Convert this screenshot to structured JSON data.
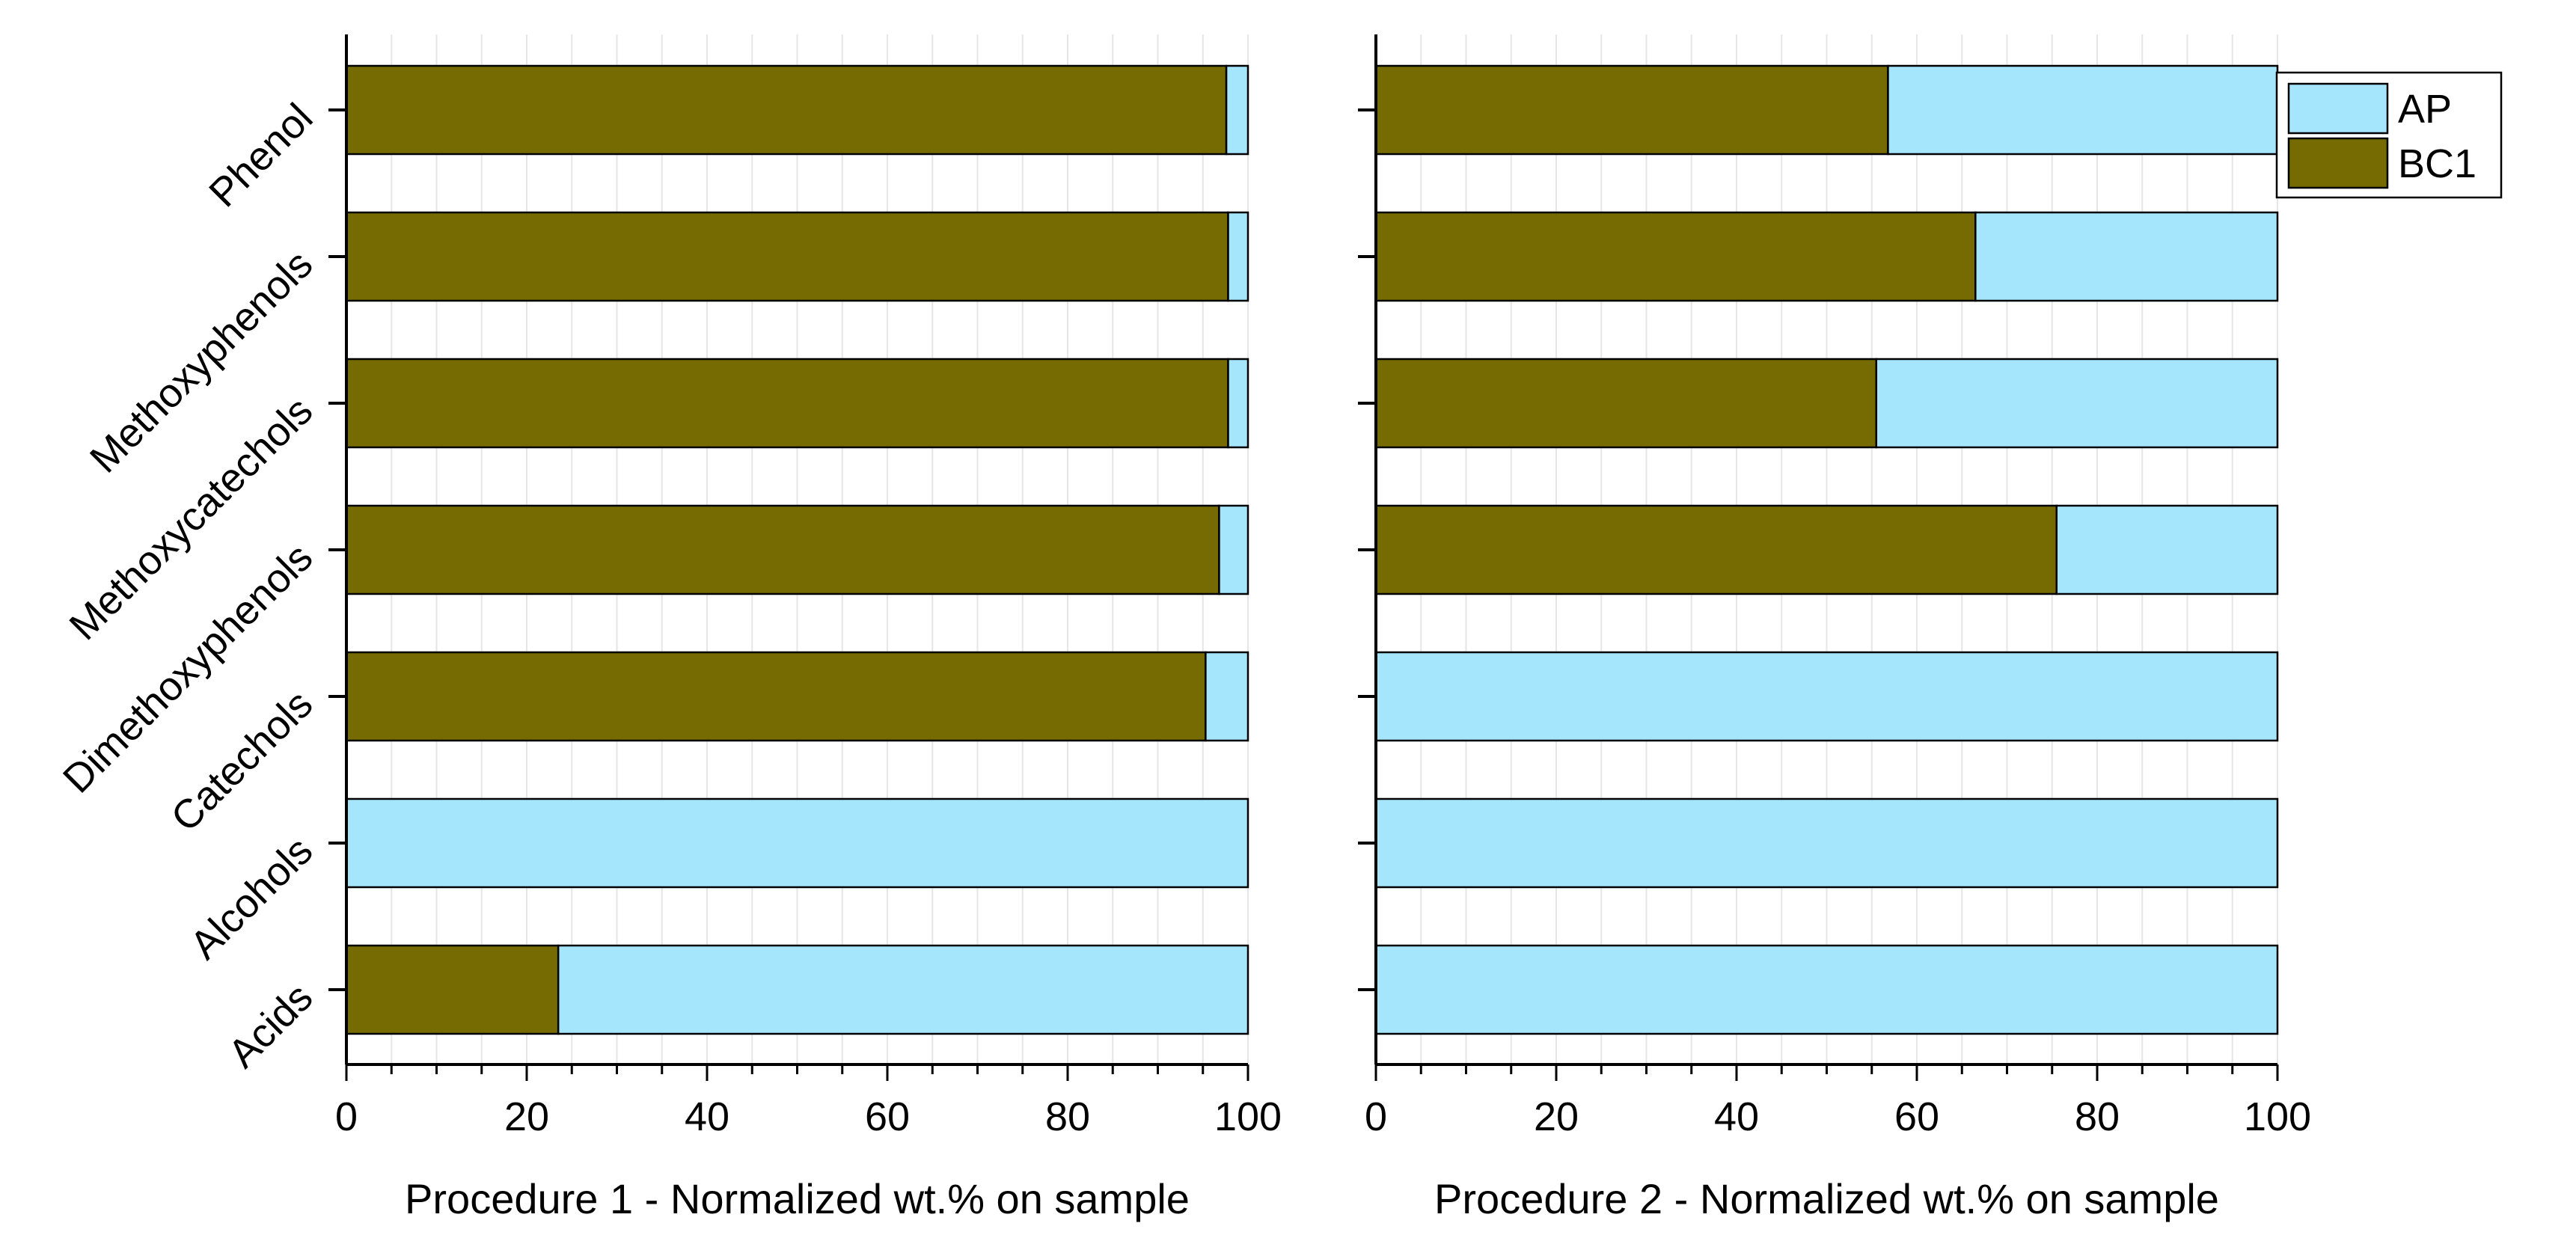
{
  "chart_data": [
    {
      "type": "bar",
      "orientation": "horizontal",
      "stacked": true,
      "categories": [
        "Acids",
        "Alcohols",
        "Catechols",
        "Dimethoxyphenols",
        "Methoxycatechols",
        "Methoxyphenols",
        "Phenol"
      ],
      "series": [
        {
          "name": "BC1",
          "values": [
            23.5,
            0,
            95.3,
            96.8,
            97.8,
            97.8,
            97.6
          ]
        },
        {
          "name": "AP",
          "values": [
            76.5,
            100,
            4.7,
            3.2,
            2.2,
            2.2,
            2.4
          ]
        }
      ],
      "xlabel": "Procedure 1 - Normalized wt.% on sample",
      "ylabel": "",
      "xlim": [
        0,
        100
      ],
      "xticks": [
        "0",
        "20",
        "40",
        "60",
        "80",
        "100"
      ],
      "grid": true,
      "show_category_labels": true
    },
    {
      "type": "bar",
      "orientation": "horizontal",
      "stacked": true,
      "categories": [
        "Acids",
        "Alcohols",
        "Catechols",
        "Dimethoxyphenols",
        "Methoxycatechols",
        "Methoxyphenols",
        "Phenol"
      ],
      "series": [
        {
          "name": "BC1",
          "values": [
            0,
            0,
            0,
            75.5,
            55.5,
            66.5,
            56.8
          ]
        },
        {
          "name": "AP",
          "values": [
            100,
            100,
            100,
            24.5,
            44.5,
            33.5,
            43.2
          ]
        }
      ],
      "xlabel": "Procedure 2 - Normalized wt.% on sample",
      "ylabel": "",
      "xlim": [
        0,
        100
      ],
      "xticks": [
        "0",
        "20",
        "40",
        "60",
        "80",
        "100"
      ],
      "grid": true,
      "show_category_labels": false
    }
  ],
  "legend": {
    "position": "top-right",
    "entries": [
      {
        "label": "AP",
        "color": "#A6E6FC"
      },
      {
        "label": "BC1",
        "color": "#766B03"
      }
    ]
  },
  "colors": {
    "AP": "#A6E6FC",
    "BC1": "#766B03",
    "grid": "#E6E6E6",
    "axis": "#000000"
  }
}
